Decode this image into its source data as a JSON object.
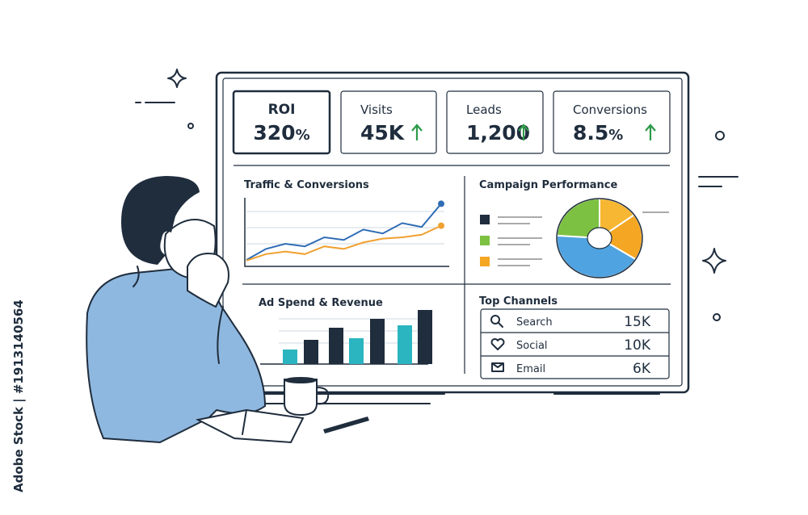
{
  "watermark": "Adobe Stock | #1913140564",
  "kpis": [
    {
      "label": "ROI",
      "value": "320",
      "unit": "%"
    },
    {
      "label": "Visits",
      "value": "45K"
    },
    {
      "label": "Leads",
      "value": "1,200"
    },
    {
      "label": "Conversions",
      "value": "8.5",
      "unit": "%"
    }
  ],
  "traffic": {
    "title": "Traffic & Conversions",
    "ylim": [
      0,
      100
    ],
    "series": [
      {
        "color": "#2f6db5",
        "values": [
          5,
          22,
          30,
          26,
          40,
          36,
          52,
          46,
          62,
          56,
          92
        ]
      },
      {
        "color": "#f0a030",
        "values": [
          4,
          14,
          18,
          14,
          26,
          22,
          32,
          38,
          40,
          44,
          58
        ]
      }
    ]
  },
  "campaign": {
    "title": "Campaign Performance",
    "legend_colors": [
      "#1f2d3d",
      "#7dc142",
      "#f5a623"
    ],
    "slices": [
      {
        "color": "#7dc142",
        "value": 24
      },
      {
        "color": "#f7b733",
        "value": 15
      },
      {
        "color": "#f5a623",
        "value": 19
      },
      {
        "color": "#4fa3e0",
        "value": 42
      }
    ]
  },
  "adspend": {
    "title": "Ad Spend & Revenue",
    "ylim": [
      0,
      70
    ],
    "values": [
      18,
      30,
      45,
      32,
      56,
      48,
      67
    ],
    "colors": [
      "#2bb5c0",
      "#1f2d3d",
      "#1f2d3d",
      "#2bb5c0",
      "#1f2d3d",
      "#2bb5c0",
      "#1f2d3d"
    ]
  },
  "channels": {
    "title": "Top Channels",
    "rows": [
      [
        "Search",
        "15K"
      ],
      [
        "Social",
        "10K"
      ],
      [
        "Email",
        "6K"
      ]
    ]
  }
}
